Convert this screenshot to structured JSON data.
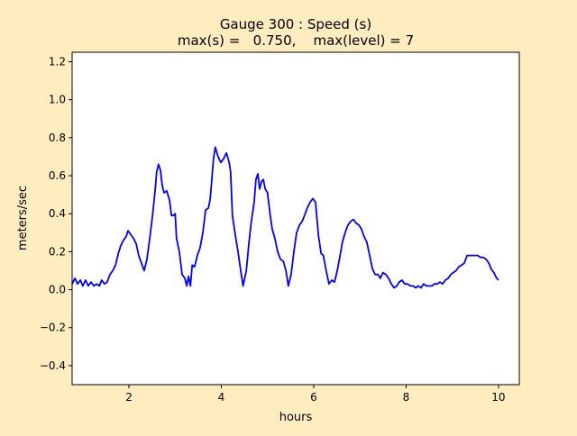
{
  "chart_data": {
    "type": "line",
    "title": "Gauge 300 : Speed (s)",
    "subtitle": "max(s) =   0.750,    max(level) = 7",
    "xlabel": "hours",
    "ylabel": "meters/sec",
    "xlim": [
      0.77,
      10.45
    ],
    "ylim": [
      -0.5,
      1.25
    ],
    "xticks": [
      2,
      4,
      6,
      8,
      10
    ],
    "xtick_labels": [
      "2",
      "4",
      "6",
      "8",
      "10"
    ],
    "yticks": [
      -0.4,
      -0.2,
      0.0,
      0.2,
      0.4,
      0.6,
      0.8,
      1.0,
      1.2
    ],
    "ytick_labels": [
      "−0.4",
      "−0.2",
      "0.0",
      "0.2",
      "0.4",
      "0.6",
      "0.8",
      "1.0",
      "1.2"
    ],
    "grid": false,
    "colors": {
      "line": "#0000ff",
      "figure_bg": "#ffedc0",
      "axes_bg": "#ffffff"
    },
    "series": [
      {
        "x": [
          0.77,
          0.83,
          0.89,
          0.95,
          1.0,
          1.06,
          1.12,
          1.18,
          1.24,
          1.3,
          1.36,
          1.41,
          1.47,
          1.53,
          1.59,
          1.65,
          1.71,
          1.77,
          1.82,
          1.88,
          1.94,
          1.98,
          2.04,
          2.1,
          2.16,
          2.21,
          2.27,
          2.33,
          2.39,
          2.45,
          2.51,
          2.57,
          2.6,
          2.64,
          2.68,
          2.72,
          2.76,
          2.82,
          2.88,
          2.92,
          2.96,
          3.0,
          3.03,
          3.09,
          3.15,
          3.21,
          3.25,
          3.29,
          3.33,
          3.37,
          3.42,
          3.48,
          3.54,
          3.6,
          3.66,
          3.72,
          3.76,
          3.8,
          3.83,
          3.87,
          3.93,
          3.99,
          4.05,
          4.11,
          4.17,
          4.2,
          4.24,
          4.3,
          4.36,
          4.42,
          4.47,
          4.54,
          4.6,
          4.65,
          4.71,
          4.75,
          4.79,
          4.83,
          4.87,
          4.91,
          4.95,
          5.0,
          5.06,
          5.1,
          5.16,
          5.22,
          5.28,
          5.34,
          5.4,
          5.45,
          5.51,
          5.57,
          5.63,
          5.69,
          5.75,
          5.8,
          5.86,
          5.92,
          5.98,
          6.04,
          6.1,
          6.16,
          6.21,
          6.27,
          6.33,
          6.39,
          6.45,
          6.51,
          6.57,
          6.62,
          6.68,
          6.74,
          6.8,
          6.86,
          6.92,
          6.98,
          7.03,
          7.09,
          7.15,
          7.21,
          7.27,
          7.33,
          7.39,
          7.44,
          7.5,
          7.56,
          7.62,
          7.68,
          7.74,
          7.8,
          7.85,
          7.91,
          7.97,
          8.03,
          8.09,
          8.15,
          8.21,
          8.26,
          8.32,
          8.38,
          8.44,
          8.5,
          8.56,
          8.61,
          8.67,
          8.73,
          8.79,
          8.85,
          8.91,
          8.97,
          9.02,
          9.08,
          9.14,
          9.2,
          9.26,
          9.32,
          9.38,
          9.43,
          9.49,
          9.55,
          9.61,
          9.67,
          9.73,
          9.79,
          9.84,
          9.9,
          9.96,
          10.0
        ],
        "y": [
          0.03,
          0.06,
          0.03,
          0.05,
          0.02,
          0.05,
          0.02,
          0.04,
          0.02,
          0.03,
          0.02,
          0.05,
          0.03,
          0.04,
          0.08,
          0.1,
          0.13,
          0.19,
          0.23,
          0.26,
          0.28,
          0.31,
          0.29,
          0.27,
          0.24,
          0.18,
          0.14,
          0.1,
          0.16,
          0.27,
          0.39,
          0.53,
          0.62,
          0.66,
          0.63,
          0.55,
          0.51,
          0.52,
          0.47,
          0.39,
          0.39,
          0.4,
          0.27,
          0.2,
          0.08,
          0.06,
          0.02,
          0.07,
          0.02,
          0.13,
          0.12,
          0.18,
          0.22,
          0.3,
          0.42,
          0.43,
          0.48,
          0.6,
          0.69,
          0.75,
          0.7,
          0.67,
          0.69,
          0.72,
          0.67,
          0.62,
          0.39,
          0.29,
          0.2,
          0.1,
          0.02,
          0.1,
          0.25,
          0.36,
          0.46,
          0.58,
          0.61,
          0.53,
          0.57,
          0.58,
          0.53,
          0.51,
          0.39,
          0.32,
          0.27,
          0.2,
          0.16,
          0.15,
          0.1,
          0.02,
          0.08,
          0.2,
          0.3,
          0.34,
          0.36,
          0.39,
          0.43,
          0.46,
          0.48,
          0.46,
          0.29,
          0.19,
          0.18,
          0.1,
          0.03,
          0.05,
          0.04,
          0.1,
          0.18,
          0.25,
          0.3,
          0.34,
          0.36,
          0.37,
          0.35,
          0.34,
          0.32,
          0.28,
          0.25,
          0.18,
          0.11,
          0.08,
          0.08,
          0.06,
          0.09,
          0.08,
          0.06,
          0.03,
          0.01,
          0.02,
          0.04,
          0.05,
          0.03,
          0.03,
          0.02,
          0.02,
          0.01,
          0.02,
          0.01,
          0.03,
          0.02,
          0.02,
          0.02,
          0.03,
          0.03,
          0.04,
          0.03,
          0.05,
          0.06,
          0.08,
          0.09,
          0.1,
          0.12,
          0.13,
          0.14,
          0.18,
          0.18,
          0.18,
          0.18,
          0.18,
          0.17,
          0.17,
          0.16,
          0.14,
          0.11,
          0.09,
          0.06,
          0.05
        ]
      }
    ]
  }
}
